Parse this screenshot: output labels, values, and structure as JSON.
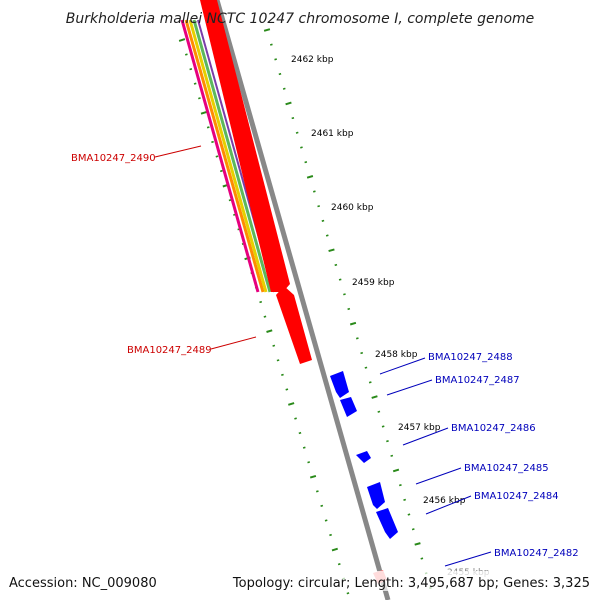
{
  "title": "Burkholderia mallei NCTC 10247 chromosome I, complete genome",
  "footer": {
    "accession": "Accession: NC_009080",
    "summary": "Topology: circular; Length: 3,495,687 bp; Genes: 3,325"
  },
  "colors": {
    "backbone": "#888888",
    "tick": "#2a8a1a",
    "forward_gene": "#ff0000",
    "reverse_gene": "#0000ff",
    "forward_label": "#cc0000",
    "reverse_label": "#0000bb"
  },
  "kbp_labels": [
    "2462 kbp",
    "2461 kbp",
    "2460 kbp",
    "2459 kbp",
    "2458 kbp",
    "2457 kbp",
    "2456 kbp",
    "2455 kbp"
  ],
  "forward_genes": [
    {
      "label": "BMA10247_2490",
      "strand": "+"
    },
    {
      "label": "BMA10247_2489",
      "strand": "+"
    }
  ],
  "reverse_genes": [
    {
      "label": "BMA10247_2488",
      "strand": "-"
    },
    {
      "label": "BMA10247_2487",
      "strand": "-"
    },
    {
      "label": "BMA10247_2486",
      "strand": "-"
    },
    {
      "label": "BMA10247_2485",
      "strand": "-"
    },
    {
      "label": "BMA10247_2484",
      "strand": "-"
    },
    {
      "label": "BMA10247_2482",
      "strand": "-"
    }
  ]
}
